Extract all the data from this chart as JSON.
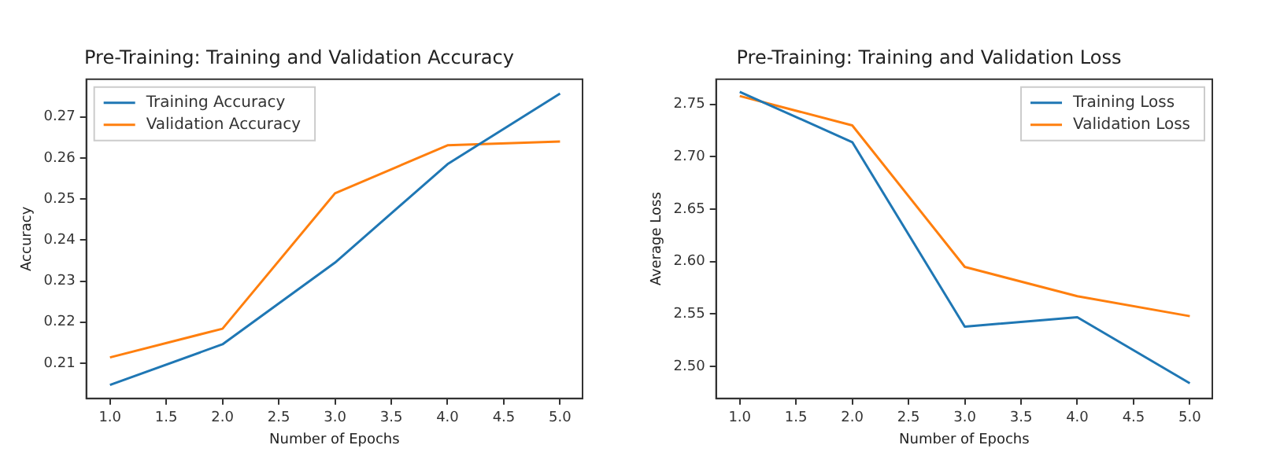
{
  "chart_data": [
    {
      "type": "line",
      "title": "Pre-Training: Training and Validation Accuracy",
      "xlabel": "Number of Epochs",
      "ylabel": "Accuracy",
      "x": [
        1,
        2,
        3,
        4,
        5
      ],
      "series": [
        {
          "name": "Training Accuracy",
          "color": "#1f77b4",
          "values": [
            0.2047,
            0.2146,
            0.2345,
            0.2585,
            0.2757
          ]
        },
        {
          "name": "Validation Accuracy",
          "color": "#ff7f0e",
          "values": [
            0.2114,
            0.2184,
            0.2514,
            0.2631,
            0.264
          ]
        }
      ],
      "xlim": [
        0.79,
        5.2
      ],
      "xticks": [
        {
          "value": 1,
          "label": "1.0"
        },
        {
          "value": 1.5,
          "label": "1.5"
        },
        {
          "value": 2,
          "label": "2.0"
        },
        {
          "value": 2.5,
          "label": "2.5"
        },
        {
          "value": 3,
          "label": "3.0"
        },
        {
          "value": 3.5,
          "label": "3.5"
        },
        {
          "value": 4,
          "label": "4.0"
        },
        {
          "value": 4.5,
          "label": "4.5"
        },
        {
          "value": 5,
          "label": "5.0"
        }
      ],
      "ylim": [
        0.2014,
        0.2792
      ],
      "yticks": [
        0.21,
        0.22,
        0.23,
        0.24,
        0.25,
        0.26,
        0.27
      ],
      "grid": false,
      "legend": "top left",
      "marker": "none",
      "line_style": "solid"
    },
    {
      "type": "line",
      "title": "Pre-Training: Training and Validation Loss",
      "xlabel": "Number of Epochs",
      "ylabel": "Average Loss",
      "x": [
        1,
        2,
        3,
        4,
        5
      ],
      "series": [
        {
          "name": "Training Loss",
          "color": "#1f77b4",
          "values": [
            2.762,
            2.714,
            2.538,
            2.547,
            2.484
          ]
        },
        {
          "name": "Validation Loss",
          "color": "#ff7f0e",
          "values": [
            2.758,
            2.73,
            2.595,
            2.567,
            2.548
          ]
        }
      ],
      "xlim": [
        0.79,
        5.2
      ],
      "xticks": [
        {
          "value": 1,
          "label": "1.0"
        },
        {
          "value": 1.5,
          "label": "1.5"
        },
        {
          "value": 2,
          "label": "2.0"
        },
        {
          "value": 2.5,
          "label": "2.5"
        },
        {
          "value": 3,
          "label": "3.0"
        },
        {
          "value": 3.5,
          "label": "3.5"
        },
        {
          "value": 4,
          "label": "4.0"
        },
        {
          "value": 4.5,
          "label": "4.5"
        },
        {
          "value": 5,
          "label": "5.0"
        }
      ],
      "ylim": [
        2.4695,
        2.774
      ],
      "yticks": [
        {
          "value": 2.5,
          "label": "2.50"
        },
        {
          "value": 2.55,
          "label": "2.55"
        },
        {
          "value": 2.6,
          "label": "2.60"
        },
        {
          "value": 2.65,
          "label": "2.65"
        },
        {
          "value": 2.7,
          "label": "2.70"
        },
        {
          "value": 2.75,
          "label": "2.75"
        }
      ],
      "grid": false,
      "legend": "top right",
      "marker": "none",
      "line_style": "solid"
    }
  ]
}
